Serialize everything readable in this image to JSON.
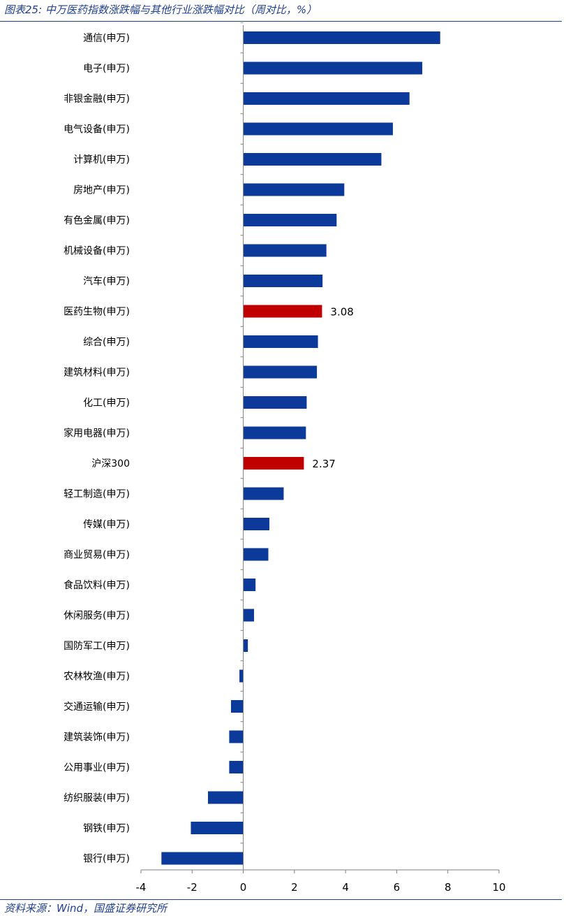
{
  "header": {
    "title": "图表25: 中万医药指数涨跌幅与其他行业涨跌幅对比（周对比，%）"
  },
  "footer": {
    "source": "资料来源：Wind，国盛证券研究所"
  },
  "colors": {
    "bar": "#0b3a9b",
    "highlight": "#c00000",
    "axis": "#7f7f7f",
    "text": "#000000",
    "rule": "#1f3f94"
  },
  "chart_data": {
    "type": "bar",
    "orientation": "horizontal",
    "title": "中万医药指数涨跌幅与其他行业涨跌幅对比（周对比，%）",
    "xlim": [
      -4,
      10
    ],
    "xticks": [
      -4,
      -2,
      0,
      2,
      4,
      6,
      8,
      10
    ],
    "categories": [
      "通信(申万)",
      "电子(申万)",
      "非银金融(申万)",
      "电气设备(申万)",
      "计算机(申万)",
      "房地产(申万)",
      "有色金属(申万)",
      "机械设备(申万)",
      "汽车(申万)",
      "医药生物(申万)",
      "综合(申万)",
      "建筑材料(申万)",
      "化工(申万)",
      "家用电器(申万)",
      "沪深300",
      "轻工制造(申万)",
      "传媒(申万)",
      "商业贸易(申万)",
      "食品饮料(申万)",
      "休闲服务(申万)",
      "国防军工(申万)",
      "农林牧渔(申万)",
      "交通运输(申万)",
      "建筑装饰(申万)",
      "公用事业(申万)",
      "纺织服装(申万)",
      "钢铁(申万)",
      "银行(申万)"
    ],
    "values": [
      7.7,
      7.0,
      6.5,
      5.85,
      5.4,
      3.95,
      3.65,
      3.25,
      3.1,
      3.08,
      2.92,
      2.88,
      2.48,
      2.45,
      2.37,
      1.58,
      1.02,
      0.98,
      0.48,
      0.42,
      0.18,
      -0.15,
      -0.48,
      -0.55,
      -0.55,
      -1.38,
      -2.05,
      -3.2
    ],
    "highlighted": [
      false,
      false,
      false,
      false,
      false,
      false,
      false,
      false,
      false,
      true,
      false,
      false,
      false,
      false,
      true,
      false,
      false,
      false,
      false,
      false,
      false,
      false,
      false,
      false,
      false,
      false,
      false,
      false
    ],
    "data_labels": [
      "",
      "",
      "",
      "",
      "",
      "",
      "",
      "",
      "",
      "3.08",
      "",
      "",
      "",
      "",
      "2.37",
      "",
      "",
      "",
      "",
      "",
      "",
      "",
      "",
      "",
      "",
      "",
      "",
      ""
    ]
  }
}
